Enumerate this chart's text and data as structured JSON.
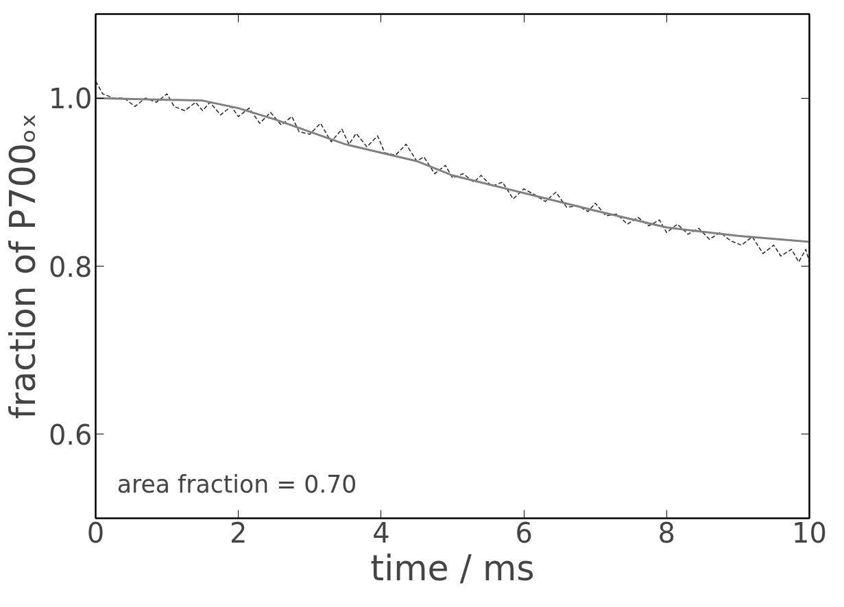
{
  "chart_data": {
    "type": "line",
    "xlabel": "time / ms",
    "ylabel": "fraction of P700ₒₓ",
    "annotations": [
      "area fraction = 0.70"
    ],
    "xlim": [
      0,
      10
    ],
    "ylim": [
      0.5,
      1.1
    ],
    "xticks": [
      0,
      2,
      4,
      6,
      8,
      10
    ],
    "yticks": [
      {
        "value": 0.6,
        "label": "0.6"
      },
      {
        "value": 0.8,
        "label": "0.8"
      },
      {
        "value": 1.0,
        "label": "1.0"
      }
    ],
    "grid": false,
    "series": [
      {
        "color": "#222222",
        "line_style": "dashed",
        "x": [
          0,
          0.1,
          0.25,
          0.4,
          0.55,
          0.7,
          0.85,
          1.0,
          1.1,
          1.25,
          1.4,
          1.5,
          1.6,
          1.75,
          1.9,
          2.0,
          2.15,
          2.3,
          2.45,
          2.6,
          2.75,
          2.85,
          3.0,
          3.15,
          3.3,
          3.45,
          3.55,
          3.65,
          3.8,
          3.95,
          4.05,
          4.2,
          4.35,
          4.5,
          4.6,
          4.75,
          4.9,
          5.0,
          5.15,
          5.3,
          5.4,
          5.55,
          5.7,
          5.85,
          6.0,
          6.15,
          6.3,
          6.45,
          6.6,
          6.75,
          6.9,
          7.0,
          7.15,
          7.3,
          7.45,
          7.6,
          7.75,
          7.9,
          8.0,
          8.15,
          8.3,
          8.45,
          8.6,
          8.75,
          8.9,
          9.05,
          9.2,
          9.35,
          9.5,
          9.6,
          9.75,
          9.85,
          9.95,
          10.0
        ],
        "values": [
          1.02,
          1.005,
          1.0,
          1.0,
          0.99,
          1.0,
          0.995,
          1.005,
          0.99,
          0.985,
          0.995,
          0.985,
          0.995,
          0.98,
          0.99,
          0.978,
          0.988,
          0.97,
          0.983,
          0.968,
          0.978,
          0.96,
          0.957,
          0.97,
          0.948,
          0.963,
          0.945,
          0.958,
          0.942,
          0.955,
          0.935,
          0.932,
          0.945,
          0.925,
          0.93,
          0.91,
          0.92,
          0.905,
          0.91,
          0.9,
          0.908,
          0.895,
          0.9,
          0.88,
          0.892,
          0.885,
          0.877,
          0.888,
          0.87,
          0.872,
          0.865,
          0.875,
          0.86,
          0.862,
          0.85,
          0.858,
          0.848,
          0.855,
          0.84,
          0.85,
          0.838,
          0.845,
          0.832,
          0.84,
          0.83,
          0.825,
          0.835,
          0.815,
          0.825,
          0.812,
          0.82,
          0.805,
          0.82,
          0.805
        ]
      },
      {
        "color": "#808080",
        "line_style": "solid",
        "x": [
          0,
          1.5,
          2.0,
          2.5,
          2.9,
          3.5,
          4.5,
          5.0,
          6.0,
          7.0,
          8.0,
          9.0,
          10.0
        ],
        "values": [
          1.0,
          0.997,
          0.988,
          0.975,
          0.963,
          0.945,
          0.925,
          0.908,
          0.887,
          0.866,
          0.846,
          0.836,
          0.829
        ]
      }
    ]
  }
}
